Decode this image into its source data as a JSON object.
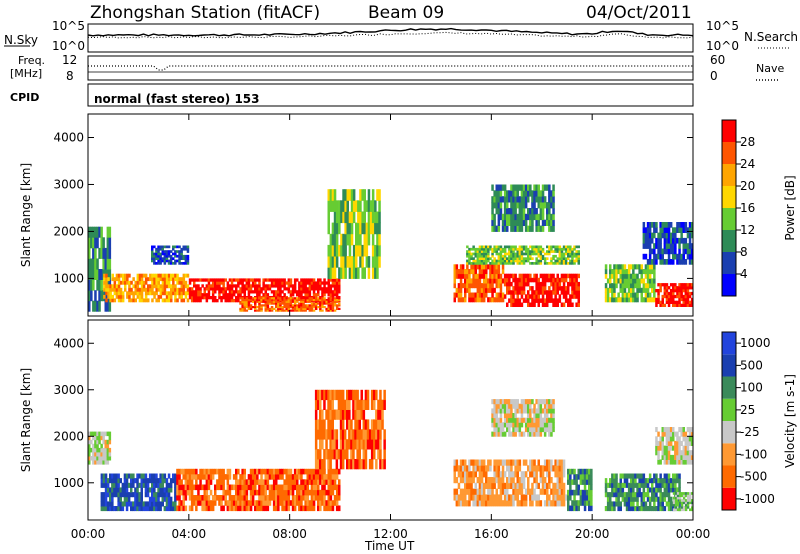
{
  "header": {
    "station": "Zhongshan Station (fitACF)",
    "beam": "Beam 09",
    "date": "04/Oct/2011"
  },
  "noise_panel": {
    "left_label": "N.Sky",
    "left_ticks": [
      "10^5",
      "10^0"
    ],
    "right_ticks": [
      "10^5",
      "10^0"
    ],
    "right_label": "N.Search"
  },
  "freq_panel": {
    "left_label_1": "Freq.",
    "left_label_2": "[MHz]",
    "left_ticks": [
      "12",
      "8"
    ],
    "right_ticks": [
      "60",
      "0"
    ],
    "right_label": "Nave"
  },
  "cpid_panel": {
    "label": "CPID",
    "text": "normal (fast stereo) 153"
  },
  "x_axis": {
    "title": "Time UT",
    "ticks": [
      "00:00",
      "04:00",
      "08:00",
      "12:00",
      "16:00",
      "20:00",
      "00:00"
    ]
  },
  "colors": {
    "power": [
      "#0000ff",
      "#1a3fb0",
      "#2e8b57",
      "#66cc33",
      "#ffd700",
      "#ffa500",
      "#ff5500",
      "#ff0000"
    ],
    "velocity": [
      "#ff0000",
      "#ff6a00",
      "#ff9933",
      "#c8c8c8",
      "#66cc33",
      "#3a8a5a",
      "#1a3fb0",
      "#2244dd"
    ]
  },
  "chart_data": [
    {
      "type": "heatmap",
      "quantity": "Power",
      "ylabel": "Slant Range [km]",
      "xlabel": "Time UT",
      "xlim_hours": [
        0,
        24
      ],
      "ylim": [
        200,
        4500
      ],
      "y_ticks": [
        "1000",
        "2000",
        "3000",
        "4000"
      ],
      "colorbar": {
        "label": "Power [dB]",
        "ticks": [
          "4",
          "8",
          "12",
          "16",
          "20",
          "24",
          "28"
        ],
        "range": [
          0,
          30
        ]
      },
      "regions": [
        {
          "t0": 0.0,
          "t1": 0.9,
          "r0": 300,
          "r1": 2100,
          "level": 2
        },
        {
          "t0": 0.6,
          "t1": 4.0,
          "r0": 500,
          "r1": 1100,
          "level": 5
        },
        {
          "t0": 2.5,
          "t1": 4.0,
          "r0": 1300,
          "r1": 1700,
          "level": 1
        },
        {
          "t0": 4.0,
          "t1": 10.0,
          "r0": 500,
          "r1": 1000,
          "level": 7
        },
        {
          "t0": 6.0,
          "t1": 10.0,
          "r0": 300,
          "r1": 600,
          "level": 6
        },
        {
          "t0": 9.5,
          "t1": 11.6,
          "r0": 1000,
          "r1": 2900,
          "level": 3
        },
        {
          "t0": 14.5,
          "t1": 16.5,
          "r0": 500,
          "r1": 1300,
          "level": 6
        },
        {
          "t0": 16.5,
          "t1": 19.5,
          "r0": 400,
          "r1": 1100,
          "level": 7
        },
        {
          "t0": 15.0,
          "t1": 19.5,
          "r0": 1300,
          "r1": 1700,
          "level": 3
        },
        {
          "t0": 16.0,
          "t1": 18.5,
          "r0": 2000,
          "r1": 3000,
          "level": 2
        },
        {
          "t0": 20.5,
          "t1": 22.5,
          "r0": 500,
          "r1": 1300,
          "level": 3
        },
        {
          "t0": 22.5,
          "t1": 24.0,
          "r0": 400,
          "r1": 900,
          "level": 7
        },
        {
          "t0": 22.0,
          "t1": 24.0,
          "r0": 1300,
          "r1": 2200,
          "level": 1
        }
      ]
    },
    {
      "type": "heatmap",
      "quantity": "Velocity",
      "ylabel": "Slant Range [km]",
      "xlabel": "Time UT",
      "xlim_hours": [
        0,
        24
      ],
      "ylim": [
        200,
        4500
      ],
      "y_ticks": [
        "1000",
        "2000",
        "3000",
        "4000"
      ],
      "colorbar": {
        "label": "Velocity [m s-1]",
        "ticks": [
          "-1000",
          "-500",
          "-100",
          "-25",
          "25",
          "100",
          "500",
          "1000"
        ],
        "range": [
          -1000,
          1000
        ]
      },
      "regions": [
        {
          "t0": 0.0,
          "t1": 0.9,
          "r0": 1400,
          "r1": 2100,
          "level": 3
        },
        {
          "t0": 0.5,
          "t1": 3.5,
          "r0": 400,
          "r1": 1200,
          "level": 6
        },
        {
          "t0": 3.5,
          "t1": 10.0,
          "r0": 400,
          "r1": 1300,
          "level": 1
        },
        {
          "t0": 9.0,
          "t1": 11.8,
          "r0": 1300,
          "r1": 3000,
          "level": 1
        },
        {
          "t0": 14.5,
          "t1": 19.0,
          "r0": 500,
          "r1": 1500,
          "level": 2
        },
        {
          "t0": 16.0,
          "t1": 18.5,
          "r0": 2000,
          "r1": 2800,
          "level": 3
        },
        {
          "t0": 19.0,
          "t1": 20.0,
          "r0": 400,
          "r1": 1300,
          "level": 5
        },
        {
          "t0": 20.5,
          "t1": 23.5,
          "r0": 400,
          "r1": 1200,
          "level": 5
        },
        {
          "t0": 22.5,
          "t1": 24.0,
          "r0": 1400,
          "r1": 2200,
          "level": 3
        },
        {
          "t0": 23.2,
          "t1": 24.0,
          "r0": 400,
          "r1": 800,
          "level": 4
        }
      ]
    }
  ]
}
